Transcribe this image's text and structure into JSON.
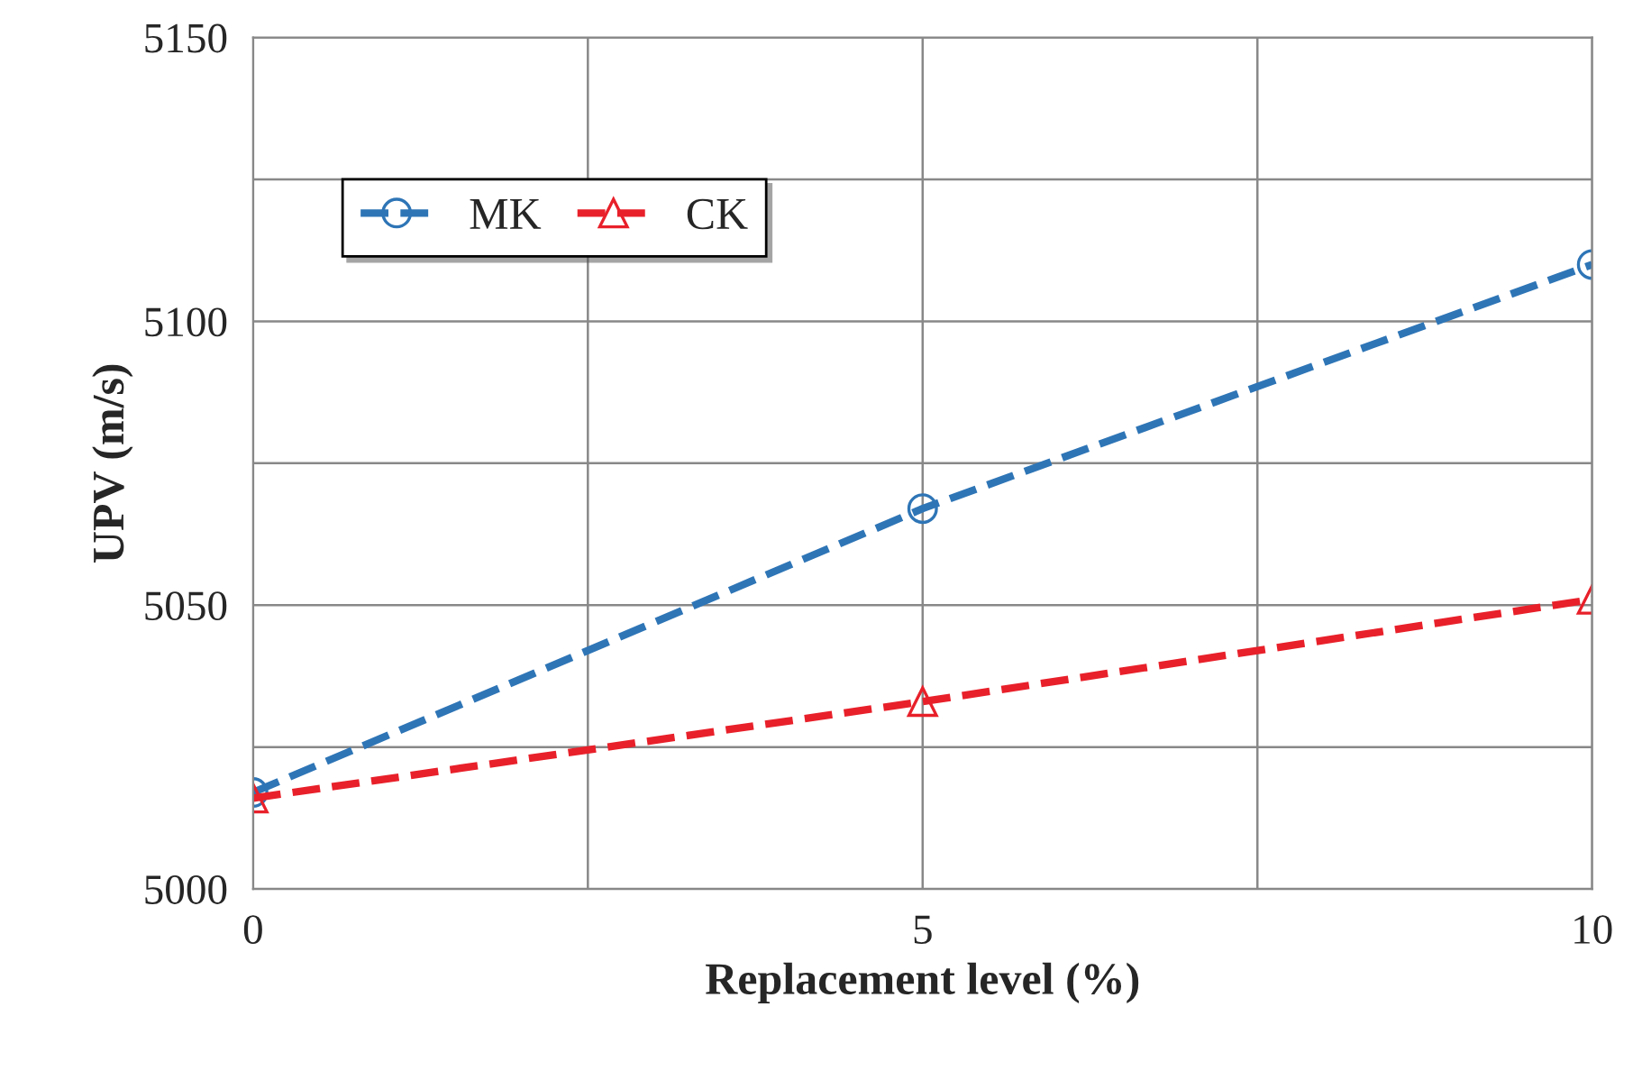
{
  "chart_data": {
    "type": "line",
    "xlabel": "Replacement level (%)",
    "ylabel": "UPV (m/s)",
    "x": [
      0,
      5,
      10
    ],
    "series": [
      {
        "name": "MK",
        "color": "#2e75b6",
        "values": [
          5017,
          5067,
          5110
        ],
        "marker": "circle"
      },
      {
        "name": "CK",
        "color": "#e8202a",
        "values": [
          5016,
          5033,
          5051
        ],
        "marker": "triangle"
      }
    ],
    "xlim": [
      0,
      10
    ],
    "xticks": [
      0,
      {
        "value": 2.5,
        "label": null
      },
      5,
      {
        "value": 7.5,
        "label": null
      },
      10
    ],
    "ylim": [
      5000,
      5150
    ],
    "yticks": [
      5000,
      {
        "value": 5025,
        "label": null
      },
      5050,
      {
        "value": 5075,
        "label": null
      },
      5100,
      {
        "value": 5125,
        "label": null
      },
      5150
    ],
    "grid": true,
    "legend": "top left",
    "line_style": "dashed"
  }
}
